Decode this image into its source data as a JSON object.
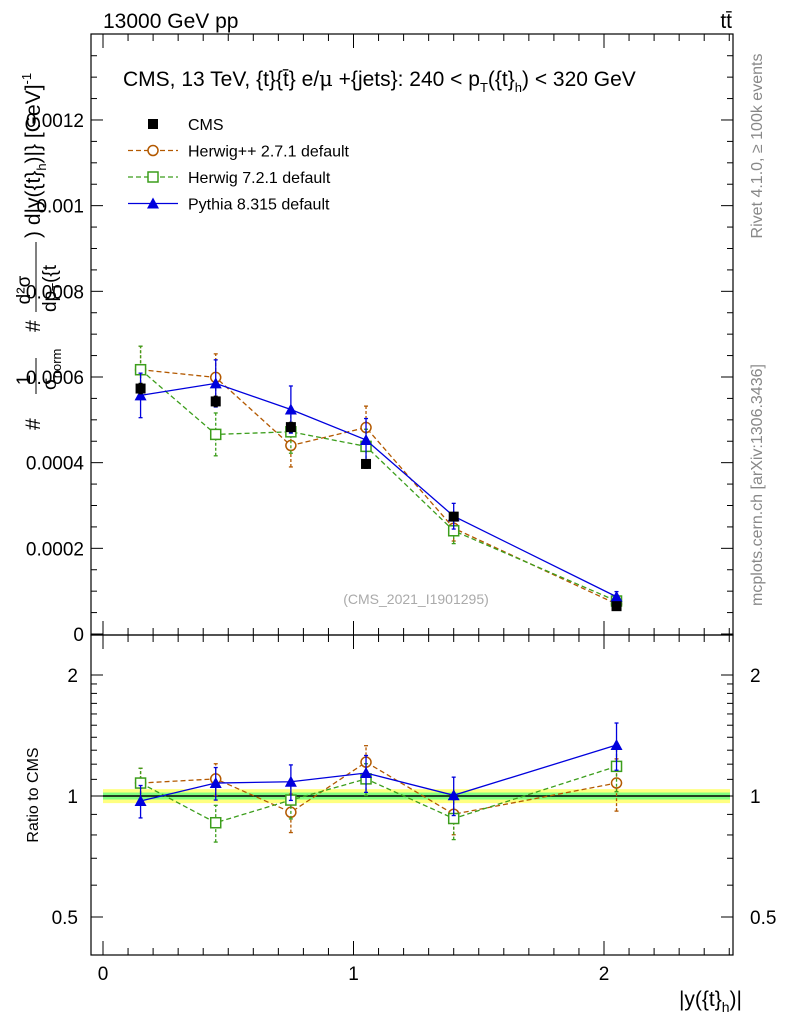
{
  "header": {
    "left": "13000 GeV pp",
    "right": "tt̄"
  },
  "side_labels": {
    "rivet": "Rivet 4.1.0, ≥ 100k events",
    "mcplots": "mcplots.cern.ch [arXiv:1306.3436]"
  },
  "colors": {
    "cms": "#000000",
    "herwigpp": "#b35900",
    "herwig7": "#3c9e1c",
    "pythia": "#0000dd",
    "band_outer": "#ffff80",
    "band_inner": "#80ff80"
  },
  "chart_data": [
    {
      "id": "main",
      "type": "scatter",
      "title": "CMS, 13 TeV, {t}{t̄} e/μ +{jets}: 240 <  p_T({t}_h) < 320 GeV",
      "title_parts": {
        "pre": "CMS, 13 TeV, {t}{",
        "tbar": "t̄",
        "mid": "} e/",
        "mu": "μ",
        "post": " +{jets}: 240 <  p",
        "sub1": "T",
        "tpart": "({t}",
        "sub2": "h",
        "end": ") < 320 GeV"
      },
      "ylabel": "1/σ_norm d²σ / dp_T({t}_h) d|y({t}_h)| [GeV⁻¹]",
      "ylabel_parts": {
        "pre": "# ",
        "frac1_num": "1",
        "frac1_den": "σ",
        "frac1_den_sub": "norm",
        "hash2": "# ",
        "frac2_num": "d²σ",
        "frac2_den": "dp",
        "frac2_den_sub": "T",
        "frac2_den_post": "({t",
        "mid": ") d|y({t}",
        "mid_sub": "h",
        "post": ")|} [GeV]",
        "post_sup": "-1"
      },
      "xlabel": "",
      "watermark": "(CMS_2021_I1901295)",
      "xlim": [
        -0.1,
        2.55
      ],
      "ylim": [
        0,
        0.0014
      ],
      "yticks": [
        0,
        0.0002,
        0.0004,
        0.0006,
        0.0008,
        0.001,
        0.0012
      ],
      "yticklabels": [
        "0",
        "0.0002",
        "0.0004",
        "0.0006",
        "0.0008",
        "0.001",
        "0.0012"
      ],
      "legend": [
        {
          "key": "cms",
          "label": "CMS"
        },
        {
          "key": "herwigpp",
          "label": "Herwig++ 2.7.1 default"
        },
        {
          "key": "herwig7",
          "label": "Herwig 7.2.1 default"
        },
        {
          "key": "pythia",
          "label": "Pythia 8.315 default"
        }
      ],
      "x": [
        0.15,
        0.45,
        0.75,
        1.05,
        1.4,
        2.05
      ],
      "series": [
        {
          "key": "cms",
          "name": "CMS",
          "marker": "square-filled",
          "line": "none",
          "values": [
            0.000573,
            0.000543,
            0.000483,
            0.000397,
            0.000274,
            6.5e-05
          ],
          "errors": [
            1.2e-05,
            1.2e-05,
            1.1e-05,
            1e-05,
            8e-06,
            4e-06
          ]
        },
        {
          "key": "herwigpp",
          "name": "Herwig++ 2.7.1 default",
          "marker": "circle-open",
          "line": "dashed",
          "values": [
            0.000617,
            0.000599,
            0.00044,
            0.000482,
            0.000247,
            7e-05
          ],
          "errors": [
            5.5e-05,
            5.5e-05,
            5e-05,
            5e-05,
            3e-05,
            1.2e-05
          ]
        },
        {
          "key": "herwig7",
          "name": "Herwig 7.2.1 default",
          "marker": "square-open",
          "line": "dashed",
          "values": [
            0.000617,
            0.000466,
            0.000472,
            0.000438,
            0.000241,
            7.7e-05
          ],
          "errors": [
            5.5e-05,
            5e-05,
            5e-05,
            4e-05,
            3e-05,
            1.2e-05
          ]
        },
        {
          "key": "pythia",
          "name": "Pythia 8.315 default",
          "marker": "triangle-filled",
          "line": "solid",
          "values": [
            0.000557,
            0.000585,
            0.000524,
            0.000453,
            0.000275,
            8.7e-05
          ],
          "errors": [
            5.2e-05,
            5.5e-05,
            5.5e-05,
            5e-05,
            3e-05,
            1.2e-05
          ]
        }
      ]
    },
    {
      "id": "ratio",
      "type": "scatter",
      "ylabel": "Ratio to CMS",
      "xlabel": "|y({t}_h)|",
      "xlabel_parts": {
        "pre": "|y({t}",
        "sub": "h",
        "post": ")|"
      },
      "xlim": [
        -0.1,
        2.55
      ],
      "ylim": [
        0.4,
        2.25
      ],
      "xticks": [
        0,
        1,
        2
      ],
      "xticklabels": [
        "0",
        "1",
        "2"
      ],
      "yticks": [
        0.5,
        1,
        2
      ],
      "yticklabels": [
        "0.5",
        "1",
        "2"
      ],
      "reference_line": 1,
      "band": {
        "inner": 0.02,
        "outer": 0.04
      },
      "x": [
        0.15,
        0.45,
        0.75,
        1.05,
        1.4,
        2.05
      ],
      "series": [
        {
          "key": "herwigpp",
          "name": "Herwig++ 2.7.1 default",
          "marker": "circle-open",
          "line": "dashed",
          "values": [
            1.077,
            1.103,
            0.911,
            1.214,
            0.901,
            1.077
          ],
          "errors": [
            0.095,
            0.1,
            0.1,
            0.12,
            0.1,
            0.16
          ]
        },
        {
          "key": "herwig7",
          "name": "Herwig 7.2.1 default",
          "marker": "square-open",
          "line": "dashed",
          "values": [
            1.077,
            0.858,
            0.977,
            1.103,
            0.879,
            1.185
          ],
          "errors": [
            0.095,
            0.09,
            0.1,
            0.1,
            0.1,
            0.16
          ]
        },
        {
          "key": "pythia",
          "name": "Pythia 8.315 default",
          "marker": "triangle-filled",
          "line": "solid",
          "values": [
            0.972,
            1.077,
            1.085,
            1.141,
            1.004,
            1.339
          ],
          "errors": [
            0.09,
            0.1,
            0.11,
            0.12,
            0.11,
            0.18
          ]
        }
      ]
    }
  ]
}
